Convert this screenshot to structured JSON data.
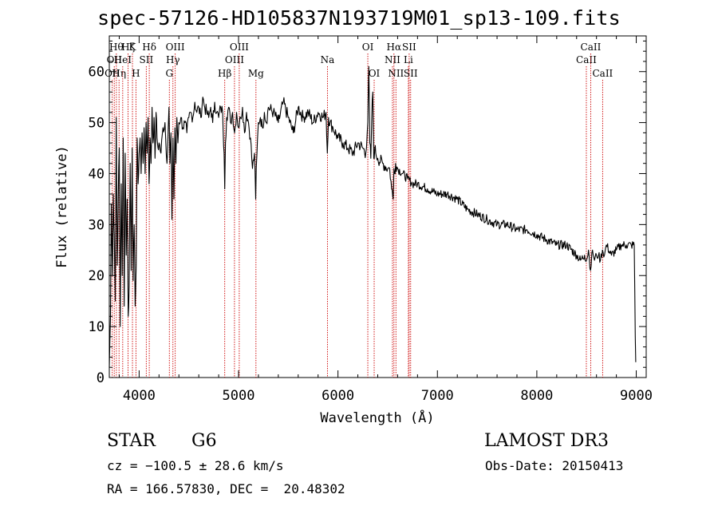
{
  "header": {
    "title": "spec-57126-HD105837N193719M01_sp13-109.fits"
  },
  "footer": {
    "object_class": "STAR",
    "subclass": "G6",
    "survey": "LAMOST DR3",
    "velocity": "cz = −100.5 ± 28.6 km/s",
    "obs_date": "Obs-Date: 20150413",
    "coords": "RA = 166.57830, DEC =  20.48302"
  },
  "chart_data": {
    "type": "line",
    "title": "spec-57126-HD105837N193719M01_sp13-109.fits",
    "xlabel": "Wavelength (Å)",
    "ylabel": "Flux (relative)",
    "xlim": [
      3700,
      9100
    ],
    "ylim": [
      0,
      67
    ],
    "xticks": [
      4000,
      5000,
      6000,
      7000,
      8000,
      9000
    ],
    "yticks": [
      0,
      10,
      20,
      30,
      40,
      50,
      60
    ],
    "x_minor_step": 200,
    "y_minor_step": 2,
    "line_color": "#000000",
    "marker_color": "#cc0000",
    "series": [
      {
        "name": "flux",
        "x": [
          3700,
          3712,
          3720,
          3732,
          3740,
          3750,
          3760,
          3770,
          3780,
          3790,
          3800,
          3810,
          3820,
          3830,
          3840,
          3850,
          3860,
          3870,
          3880,
          3890,
          3900,
          3910,
          3920,
          3930,
          3940,
          3950,
          3960,
          3970,
          3980,
          3990,
          4000,
          4010,
          4020,
          4030,
          4040,
          4050,
          4060,
          4070,
          4080,
          4090,
          4100,
          4110,
          4120,
          4130,
          4140,
          4150,
          4160,
          4170,
          4180,
          4190,
          4200,
          4220,
          4240,
          4260,
          4280,
          4300,
          4310,
          4320,
          4330,
          4340,
          4350,
          4360,
          4370,
          4380,
          4390,
          4400,
          4420,
          4440,
          4460,
          4480,
          4500,
          4520,
          4540,
          4560,
          4580,
          4600,
          4620,
          4640,
          4660,
          4680,
          4700,
          4720,
          4740,
          4760,
          4780,
          4800,
          4820,
          4840,
          4855,
          4861,
          4868,
          4880,
          4900,
          4920,
          4940,
          4960,
          4980,
          5000,
          5020,
          5040,
          5060,
          5080,
          5100,
          5120,
          5140,
          5160,
          5172,
          5178,
          5185,
          5200,
          5220,
          5240,
          5260,
          5280,
          5300,
          5350,
          5400,
          5450,
          5500,
          5550,
          5600,
          5650,
          5700,
          5750,
          5800,
          5850,
          5880,
          5893,
          5905,
          5920,
          5950,
          6000,
          6050,
          6100,
          6150,
          6200,
          6250,
          6280,
          6300,
          6310,
          6320,
          6330,
          6340,
          6350,
          6360,
          6370,
          6380,
          6400,
          6450,
          6500,
          6520,
          6540,
          6555,
          6563,
          6570,
          6580,
          6600,
          6650,
          6700,
          6750,
          6800,
          6900,
          7000,
          7100,
          7200,
          7300,
          7400,
          7500,
          7600,
          7700,
          7800,
          7900,
          8000,
          8100,
          8200,
          8300,
          8400,
          8440,
          8480,
          8500,
          8520,
          8540,
          8560,
          8580,
          8600,
          8620,
          8640,
          8660,
          8680,
          8700,
          8750,
          8800,
          8850,
          8900,
          8950,
          8980,
          8990,
          8995
        ],
        "y": [
          2,
          12,
          34,
          20,
          36,
          28,
          15,
          51,
          22,
          35,
          45,
          10,
          38,
          20,
          47,
          14,
          44,
          24,
          35,
          12,
          18,
          42,
          21,
          45,
          19,
          30,
          14,
          22,
          47,
          38,
          44,
          47,
          40,
          48,
          42,
          49,
          40,
          50,
          44,
          51,
          38,
          47,
          42,
          53,
          46,
          51,
          43,
          52,
          47,
          45,
          46,
          44,
          49,
          50,
          42,
          53,
          42,
          48,
          31,
          47,
          35,
          49,
          42,
          51,
          46,
          50,
          51,
          49,
          50,
          48,
          51,
          52,
          51,
          54,
          52,
          53,
          51,
          55,
          53,
          52,
          51,
          53,
          50,
          54,
          52,
          51,
          53,
          52,
          44,
          37,
          46,
          51,
          53,
          50,
          52,
          48,
          52,
          49,
          51,
          53,
          48,
          52,
          50,
          47,
          41,
          44,
          35,
          41,
          44,
          50,
          51,
          49,
          52,
          50,
          53,
          52,
          50,
          54,
          51,
          48,
          53,
          51,
          52,
          50,
          52,
          51,
          52,
          44,
          51,
          50,
          49,
          47,
          46,
          45,
          44,
          46,
          45,
          44,
          50,
          61,
          46,
          43,
          51,
          56,
          43,
          45,
          44,
          43,
          42,
          41,
          41,
          37,
          35,
          41,
          40,
          42,
          41,
          40,
          39,
          38,
          38,
          37,
          36,
          36,
          35,
          33,
          32,
          31,
          30,
          30,
          29,
          29,
          28,
          27,
          26,
          26,
          24,
          23,
          24,
          23,
          25,
          21,
          25,
          23,
          24,
          24,
          23,
          25,
          24,
          26,
          24,
          25,
          26,
          26,
          26,
          26,
          8,
          3
        ]
      }
    ],
    "line_markers": [
      {
        "wl": 3730,
        "label": "OII",
        "row": 2
      },
      {
        "wl": 3750,
        "label": "OII",
        "row": 1
      },
      {
        "wl": 3771,
        "label": "Hθ",
        "row": 0
      },
      {
        "wl": 3798,
        "label": "Hη",
        "row": 2
      },
      {
        "wl": 3835,
        "label": "HeI",
        "row": 1
      },
      {
        "wl": 3889,
        "label": "Hζ",
        "row": 0
      },
      {
        "wl": 3933,
        "label": "K",
        "row": 0
      },
      {
        "wl": 3968,
        "label": "H",
        "row": 2
      },
      {
        "wl": 4072,
        "label": "SII",
        "row": 1
      },
      {
        "wl": 4102,
        "label": "Hδ",
        "row": 0
      },
      {
        "wl": 4304,
        "label": "G",
        "row": 2
      },
      {
        "wl": 4340,
        "label": "Hγ",
        "row": 1
      },
      {
        "wl": 4363,
        "label": "OIII",
        "row": 0
      },
      {
        "wl": 4861,
        "label": "Hβ",
        "row": 2
      },
      {
        "wl": 4959,
        "label": "OIII",
        "row": 1
      },
      {
        "wl": 5007,
        "label": "OIII",
        "row": 0
      },
      {
        "wl": 5175,
        "label": "Mg",
        "row": 2
      },
      {
        "wl": 5894,
        "label": "Na",
        "row": 1
      },
      {
        "wl": 6300,
        "label": "OI",
        "row": 0
      },
      {
        "wl": 6364,
        "label": "OI",
        "row": 2
      },
      {
        "wl": 6548,
        "label": "NII",
        "row": 1
      },
      {
        "wl": 6563,
        "label": "Hα",
        "row": 0
      },
      {
        "wl": 6583,
        "label": "NII",
        "row": 2
      },
      {
        "wl": 6708,
        "label": "Li",
        "row": 1
      },
      {
        "wl": 6716,
        "label": "SII",
        "row": 0
      },
      {
        "wl": 6731,
        "label": "SII",
        "row": 2
      },
      {
        "wl": 8498,
        "label": "CaII",
        "row": 1
      },
      {
        "wl": 8542,
        "label": "CaII",
        "row": 0
      },
      {
        "wl": 8662,
        "label": "CaII",
        "row": 2
      }
    ]
  }
}
